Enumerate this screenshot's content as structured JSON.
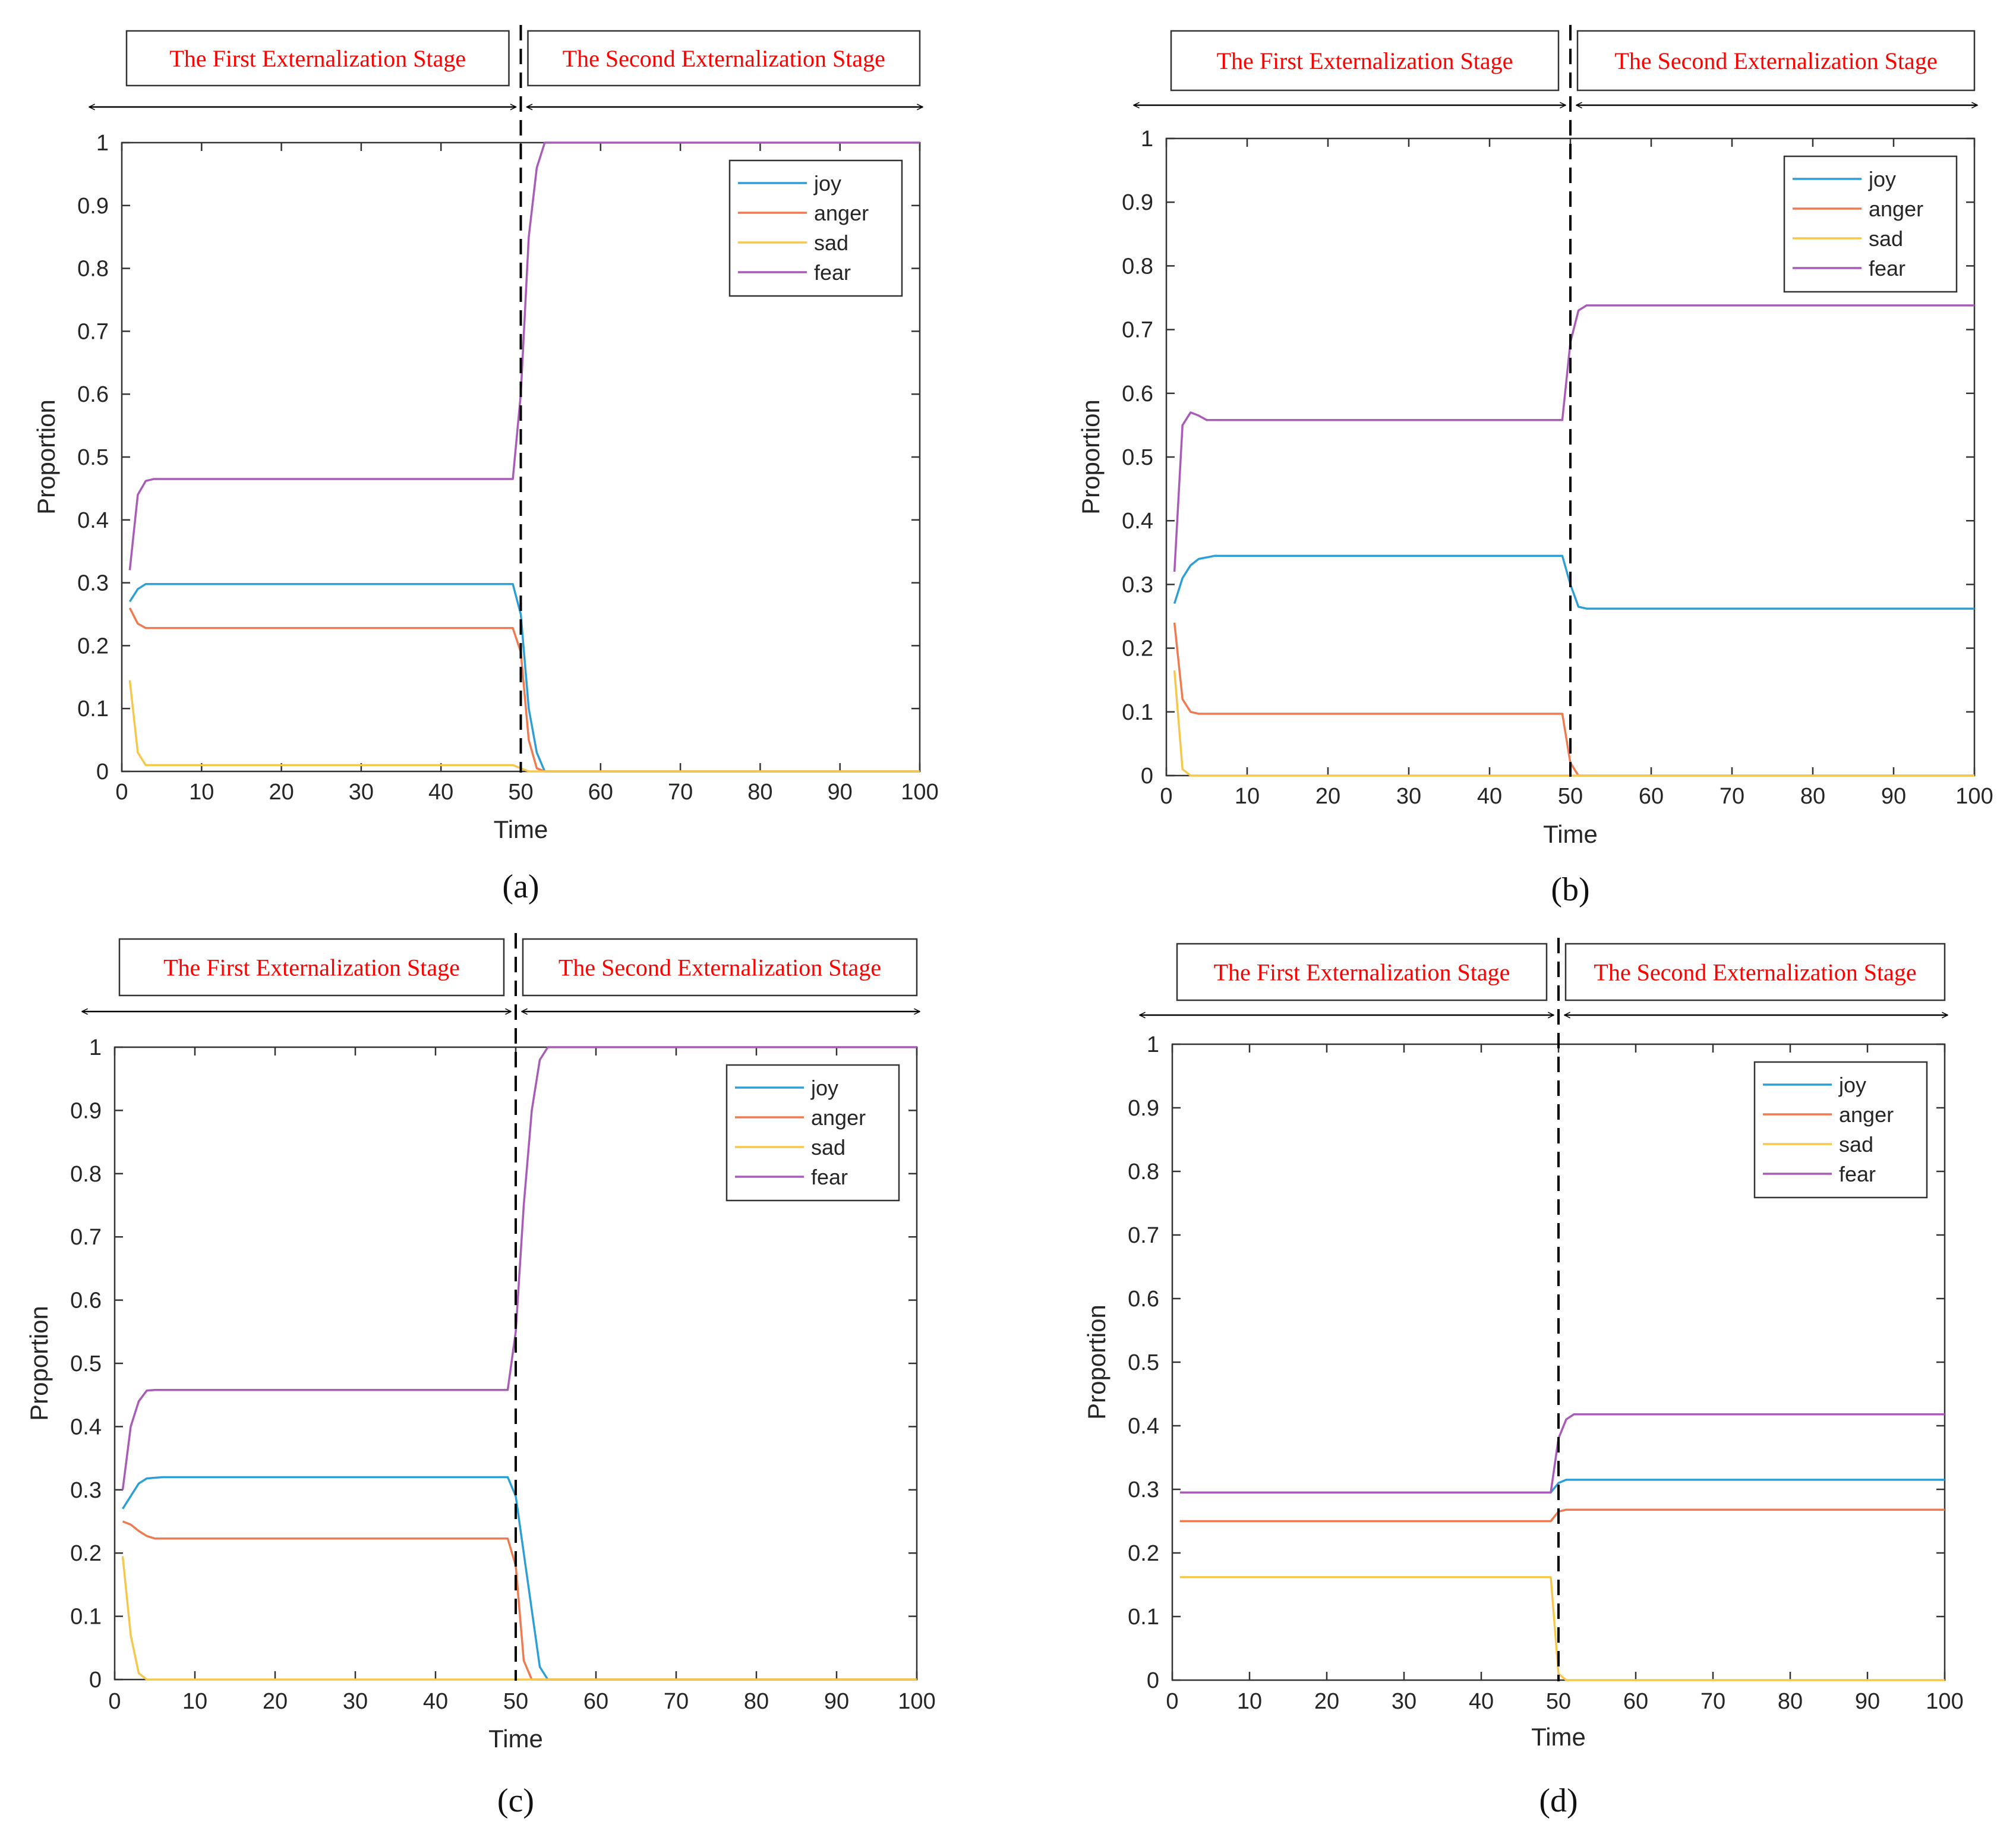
{
  "stage_labels": {
    "first": "The First Externalization Stage",
    "second": "The Second Externalization Stage"
  },
  "colors": {
    "joy": "#2e9fd6",
    "anger": "#f07a50",
    "sad": "#f5c84c",
    "fear": "#a85cb8",
    "stage_text": "#ff0000"
  },
  "chart_data": [
    {
      "type": "line",
      "caption": "(a)",
      "xlabel": "Time",
      "ylabel": "Proportion",
      "xlim": [
        0,
        100
      ],
      "ylim": [
        0,
        1
      ],
      "xticks": [
        0,
        10,
        20,
        30,
        40,
        50,
        60,
        70,
        80,
        90,
        100
      ],
      "yticks": [
        0,
        0.1,
        0.2,
        0.3,
        0.4,
        0.5,
        0.6,
        0.7,
        0.8,
        0.9,
        1
      ],
      "stage_boundary": 50,
      "legend": [
        "joy",
        "anger",
        "sad",
        "fear"
      ],
      "series": [
        {
          "name": "joy",
          "points": [
            [
              1,
              0.27
            ],
            [
              2,
              0.29
            ],
            [
              3,
              0.298
            ],
            [
              5,
              0.298
            ],
            [
              49,
              0.298
            ],
            [
              50,
              0.25
            ],
            [
              51,
              0.1
            ],
            [
              52,
              0.03
            ],
            [
              53,
              0
            ],
            [
              100,
              0
            ]
          ]
        },
        {
          "name": "anger",
          "points": [
            [
              1,
              0.26
            ],
            [
              2,
              0.235
            ],
            [
              3,
              0.228
            ],
            [
              5,
              0.228
            ],
            [
              49,
              0.228
            ],
            [
              50,
              0.19
            ],
            [
              51,
              0.05
            ],
            [
              52,
              0.005
            ],
            [
              53,
              0
            ],
            [
              100,
              0
            ]
          ]
        },
        {
          "name": "sad",
          "points": [
            [
              1,
              0.145
            ],
            [
              2,
              0.03
            ],
            [
              3,
              0.01
            ],
            [
              49,
              0.01
            ],
            [
              50,
              0.005
            ],
            [
              51,
              0
            ],
            [
              100,
              0
            ]
          ]
        },
        {
          "name": "fear",
          "points": [
            [
              1,
              0.32
            ],
            [
              2,
              0.44
            ],
            [
              3,
              0.462
            ],
            [
              4,
              0.465
            ],
            [
              49,
              0.465
            ],
            [
              50,
              0.6
            ],
            [
              51,
              0.85
            ],
            [
              52,
              0.96
            ],
            [
              53,
              1.0
            ],
            [
              100,
              1.0
            ]
          ]
        }
      ]
    },
    {
      "type": "line",
      "caption": "(b)",
      "xlabel": "Time",
      "ylabel": "Proportion",
      "xlim": [
        0,
        100
      ],
      "ylim": [
        0,
        1
      ],
      "xticks": [
        0,
        10,
        20,
        30,
        40,
        50,
        60,
        70,
        80,
        90,
        100
      ],
      "yticks": [
        0,
        0.1,
        0.2,
        0.3,
        0.4,
        0.5,
        0.6,
        0.7,
        0.8,
        0.9,
        1
      ],
      "stage_boundary": 50,
      "legend": [
        "joy",
        "anger",
        "sad",
        "fear"
      ],
      "series": [
        {
          "name": "joy",
          "points": [
            [
              1,
              0.27
            ],
            [
              2,
              0.31
            ],
            [
              3,
              0.33
            ],
            [
              4,
              0.34
            ],
            [
              6,
              0.345
            ],
            [
              49,
              0.345
            ],
            [
              50,
              0.3
            ],
            [
              51,
              0.265
            ],
            [
              52,
              0.262
            ],
            [
              100,
              0.262
            ]
          ]
        },
        {
          "name": "anger",
          "points": [
            [
              1,
              0.24
            ],
            [
              2,
              0.12
            ],
            [
              3,
              0.1
            ],
            [
              4,
              0.097
            ],
            [
              49,
              0.097
            ],
            [
              50,
              0.02
            ],
            [
              51,
              0
            ],
            [
              100,
              0
            ]
          ]
        },
        {
          "name": "sad",
          "points": [
            [
              1,
              0.165
            ],
            [
              2,
              0.01
            ],
            [
              3,
              0
            ],
            [
              100,
              0
            ]
          ]
        },
        {
          "name": "fear",
          "points": [
            [
              1,
              0.32
            ],
            [
              2,
              0.55
            ],
            [
              3,
              0.57
            ],
            [
              4,
              0.565
            ],
            [
              5,
              0.558
            ],
            [
              49,
              0.558
            ],
            [
              50,
              0.68
            ],
            [
              51,
              0.73
            ],
            [
              52,
              0.738
            ],
            [
              100,
              0.738
            ]
          ]
        }
      ]
    },
    {
      "type": "line",
      "caption": "(c)",
      "xlabel": "Time",
      "ylabel": "Proportion",
      "xlim": [
        0,
        100
      ],
      "ylim": [
        0,
        1
      ],
      "xticks": [
        0,
        10,
        20,
        30,
        40,
        50,
        60,
        70,
        80,
        90,
        100
      ],
      "yticks": [
        0,
        0.1,
        0.2,
        0.3,
        0.4,
        0.5,
        0.6,
        0.7,
        0.8,
        0.9,
        1
      ],
      "stage_boundary": 50,
      "legend": [
        "joy",
        "anger",
        "sad",
        "fear"
      ],
      "series": [
        {
          "name": "joy",
          "points": [
            [
              1,
              0.27
            ],
            [
              2,
              0.29
            ],
            [
              3,
              0.31
            ],
            [
              4,
              0.318
            ],
            [
              6,
              0.32
            ],
            [
              49,
              0.32
            ],
            [
              50,
              0.29
            ],
            [
              51,
              0.2
            ],
            [
              52,
              0.11
            ],
            [
              53,
              0.02
            ],
            [
              54,
              0
            ],
            [
              100,
              0
            ]
          ]
        },
        {
          "name": "anger",
          "points": [
            [
              1,
              0.25
            ],
            [
              2,
              0.245
            ],
            [
              3,
              0.235
            ],
            [
              4,
              0.227
            ],
            [
              5,
              0.223
            ],
            [
              49,
              0.223
            ],
            [
              50,
              0.18
            ],
            [
              51,
              0.03
            ],
            [
              52,
              0
            ],
            [
              100,
              0
            ]
          ]
        },
        {
          "name": "sad",
          "points": [
            [
              1,
              0.195
            ],
            [
              2,
              0.07
            ],
            [
              3,
              0.01
            ],
            [
              4,
              0
            ],
            [
              100,
              0
            ]
          ]
        },
        {
          "name": "fear",
          "points": [
            [
              1,
              0.3
            ],
            [
              2,
              0.4
            ],
            [
              3,
              0.44
            ],
            [
              4,
              0.457
            ],
            [
              5,
              0.458
            ],
            [
              49,
              0.458
            ],
            [
              50,
              0.55
            ],
            [
              51,
              0.75
            ],
            [
              52,
              0.9
            ],
            [
              53,
              0.98
            ],
            [
              54,
              1.0
            ],
            [
              100,
              1.0
            ]
          ]
        }
      ]
    },
    {
      "type": "line",
      "caption": "(d)",
      "xlabel": "Time",
      "ylabel": "Proportion",
      "xlim": [
        0,
        100
      ],
      "ylim": [
        0,
        1
      ],
      "xticks": [
        0,
        10,
        20,
        30,
        40,
        50,
        60,
        70,
        80,
        90,
        100
      ],
      "yticks": [
        0,
        0.1,
        0.2,
        0.3,
        0.4,
        0.5,
        0.6,
        0.7,
        0.8,
        0.9,
        1
      ],
      "stage_boundary": 50,
      "legend": [
        "joy",
        "anger",
        "sad",
        "fear"
      ],
      "series": [
        {
          "name": "joy",
          "points": [
            [
              1,
              0.295
            ],
            [
              49,
              0.295
            ],
            [
              50,
              0.31
            ],
            [
              51,
              0.315
            ],
            [
              100,
              0.315
            ]
          ]
        },
        {
          "name": "anger",
          "points": [
            [
              1,
              0.25
            ],
            [
              49,
              0.25
            ],
            [
              50,
              0.265
            ],
            [
              51,
              0.268
            ],
            [
              100,
              0.268
            ]
          ]
        },
        {
          "name": "sad",
          "points": [
            [
              1,
              0.162
            ],
            [
              49,
              0.162
            ],
            [
              50,
              0.01
            ],
            [
              51,
              0
            ],
            [
              100,
              0
            ]
          ]
        },
        {
          "name": "fear",
          "points": [
            [
              1,
              0.295
            ],
            [
              49,
              0.295
            ],
            [
              50,
              0.38
            ],
            [
              51,
              0.41
            ],
            [
              52,
              0.418
            ],
            [
              100,
              0.418
            ]
          ]
        }
      ]
    }
  ]
}
